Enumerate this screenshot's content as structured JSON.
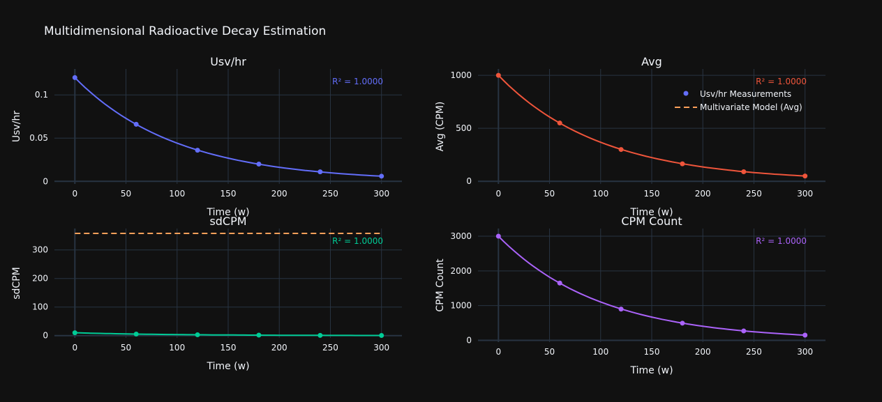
{
  "title": "Multidimensional Radioactive Decay Estimation",
  "legend": [
    {
      "label": "Usv/hr Measurements",
      "kind": "marker",
      "color": "#636efa"
    },
    {
      "label": "Multivariate Model (Avg)",
      "kind": "dash",
      "color": "#FFA15A"
    }
  ],
  "chart_data": [
    {
      "type": "line",
      "title": "Usv/hr",
      "xlabel": "Time (w)",
      "ylabel": "Usv/hr",
      "color": "#636efa",
      "annotation": "R² = 1.0000",
      "xlim": [
        -20,
        320
      ],
      "ylim": [
        -0.003,
        0.13
      ],
      "xticks": [
        0,
        50,
        100,
        150,
        200,
        250,
        300
      ],
      "yticks": [
        0,
        0.05,
        0.1
      ],
      "ytick_labels": [
        "0",
        "0.05",
        "0.1"
      ],
      "measurements": {
        "x": [
          0,
          60,
          120,
          180,
          240,
          300
        ],
        "y": [
          0.12,
          0.066,
          0.036,
          0.02,
          0.011,
          0.006
        ]
      },
      "model": {
        "x0": 0,
        "x1": 300,
        "a": 0.12,
        "k": 0.00999
      }
    },
    {
      "type": "line",
      "title": "Avg",
      "xlabel": "Time (w)",
      "ylabel": "Avg (CPM)",
      "color": "#EF553B",
      "annotation": "R² = 1.0000",
      "xlim": [
        -20,
        320
      ],
      "ylim": [
        -25,
        1060
      ],
      "xticks": [
        0,
        50,
        100,
        150,
        200,
        250,
        300
      ],
      "yticks": [
        0,
        500,
        1000
      ],
      "ytick_labels": [
        "0",
        "500",
        "1000"
      ],
      "measurements": {
        "x": [
          0,
          60,
          120,
          180,
          240,
          300
        ],
        "y": [
          1000,
          550,
          300,
          165,
          90,
          50
        ]
      },
      "model": {
        "x0": 0,
        "x1": 300,
        "a": 1000,
        "k": 0.00999
      }
    },
    {
      "type": "line",
      "title": "sdCPM",
      "xlabel": "Time (w)",
      "ylabel": "sdCPM",
      "color": "#00cc96",
      "annotation": "R² = 1.0000",
      "xlim": [
        -20,
        320
      ],
      "ylim": [
        -8,
        375
      ],
      "xticks": [
        0,
        50,
        100,
        150,
        200,
        250,
        300
      ],
      "yticks": [
        0,
        100,
        200,
        300
      ],
      "ytick_labels": [
        "0",
        "100",
        "200",
        "300"
      ],
      "measurements": {
        "x": [
          0,
          60,
          120,
          180,
          240,
          300
        ],
        "y": [
          10,
          5.5,
          3,
          1.7,
          0.9,
          0.5
        ]
      },
      "model": {
        "x0": 0,
        "x1": 300,
        "a": 10,
        "k": 0.00999
      },
      "extra_line": {
        "name": "Multivariate Model (Avg)",
        "color": "#FFA15A",
        "x": [
          0,
          300
        ],
        "y": [
          358,
          358
        ]
      }
    },
    {
      "type": "line",
      "title": "CPM Count",
      "xlabel": "Time (w)",
      "ylabel": "CPM Count",
      "color": "#ab63fa",
      "annotation": "R² = 1.0000",
      "xlim": [
        -20,
        320
      ],
      "ylim": [
        -50,
        3220
      ],
      "xticks": [
        0,
        50,
        100,
        150,
        200,
        250,
        300
      ],
      "yticks": [
        0,
        1000,
        2000,
        3000
      ],
      "ytick_labels": [
        "0",
        "1000",
        "2000",
        "3000"
      ],
      "measurements": {
        "x": [
          0,
          60,
          120,
          180,
          240,
          300
        ],
        "y": [
          3000,
          1650,
          900,
          495,
          270,
          150
        ]
      },
      "model": {
        "x0": 0,
        "x1": 300,
        "a": 3000,
        "k": 0.00999
      }
    }
  ]
}
